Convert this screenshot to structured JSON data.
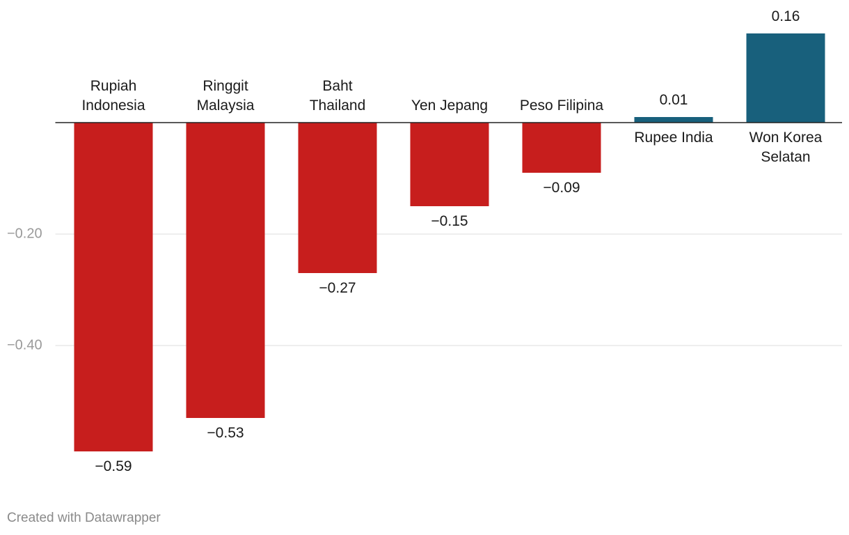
{
  "chart_data": {
    "type": "bar",
    "categories": [
      "Rupiah\nIndonesia",
      "Ringgit\nMalaysia",
      "Baht\nThailand",
      "Yen Jepang",
      "Peso Filipina",
      "Rupee India",
      "Won Korea\nSelatan"
    ],
    "values": [
      -0.59,
      -0.53,
      -0.27,
      -0.15,
      -0.09,
      0.01,
      0.16
    ],
    "value_labels": [
      "−0.59",
      "−0.53",
      "−0.27",
      "−0.15",
      "−0.09",
      "0.01",
      "0.16"
    ],
    "color_negative": "#c71e1d",
    "color_positive": "#18607c",
    "ylim": [
      -0.6,
      0.2
    ],
    "yticks": [
      {
        "value": -0.2,
        "label": "−0.20"
      },
      {
        "value": -0.4,
        "label": "−0.40"
      }
    ],
    "grid": true
  },
  "footer": "Created with Datawrapper"
}
